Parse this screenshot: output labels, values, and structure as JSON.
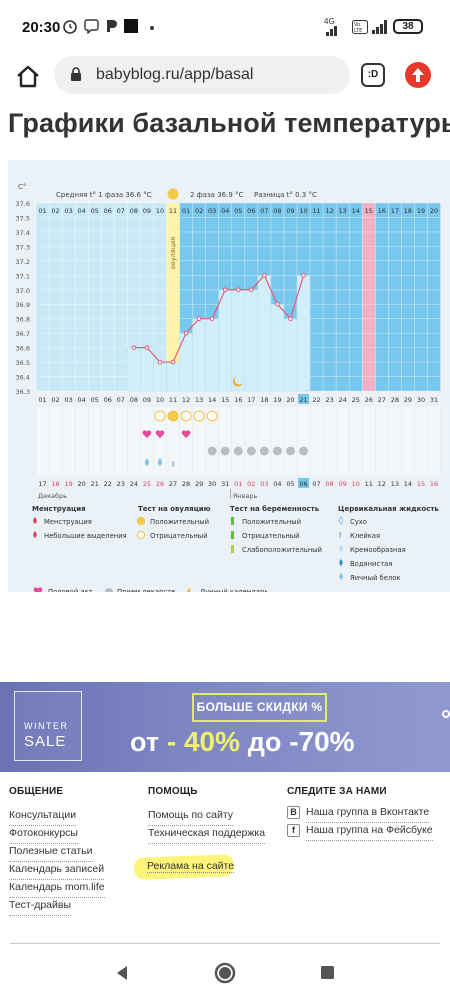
{
  "status": {
    "time": "20:30",
    "battery": "38",
    "network_4g": "4G",
    "volte": "Vo LTE"
  },
  "browser": {
    "url": "babyblog.ru/app/basal",
    "tabs_label": ":D"
  },
  "page": {
    "title": "Графики базальной температуры"
  },
  "chart_data": {
    "type": "line",
    "ylabel": "C°",
    "yticks": [
      "37.6",
      "37.5",
      "37.4",
      "37.3",
      "37.2",
      "37.1",
      "37.0",
      "36.9",
      "36.8",
      "36.7",
      "36.6",
      "36.5",
      "36.4",
      "36.3"
    ],
    "ylim": [
      36.3,
      37.6
    ],
    "phase1_label": "Средняя t° 1 фаза 36.6 °C",
    "phase2_label": "2 фаза 36.9 °C",
    "diff_label": "Разница t° 0.3 °C",
    "ovulation_label": "овуляция",
    "cycle_days": [
      "01",
      "02",
      "03",
      "04",
      "05",
      "06",
      "07",
      "08",
      "09",
      "10",
      "11",
      "01",
      "02",
      "03",
      "04",
      "05",
      "06",
      "07",
      "08",
      "09",
      "10",
      "11",
      "12",
      "13",
      "14",
      "15",
      "16",
      "17",
      "18",
      "19",
      "20"
    ],
    "cycle_day_strip": [
      "01",
      "02",
      "03",
      "04",
      "05",
      "06",
      "07",
      "08",
      "09",
      "10",
      "11",
      "12",
      "13",
      "14",
      "15",
      "16",
      "17",
      "18",
      "19",
      "20",
      "21",
      "22",
      "23",
      "24",
      "25",
      "26",
      "27",
      "28",
      "29",
      "30",
      "31"
    ],
    "date_days": [
      "17",
      "18",
      "19",
      "20",
      "21",
      "22",
      "23",
      "24",
      "25",
      "26",
      "27",
      "28",
      "29",
      "30",
      "31",
      "01",
      "02",
      "03",
      "04",
      "05",
      "06",
      "07",
      "08",
      "09",
      "10",
      "11",
      "12",
      "13",
      "14",
      "15",
      "16"
    ],
    "date_days_red": [
      1,
      2,
      8,
      9,
      15,
      16,
      17,
      22,
      23,
      24,
      29,
      30
    ],
    "month_labels": [
      "Декабрь",
      "Январь"
    ],
    "highlight_day_index": 20,
    "ovulation_day_index": 10,
    "pink_day_index": 25,
    "series": [
      {
        "values": [
          null,
          null,
          null,
          null,
          null,
          null,
          null,
          36.6,
          36.6,
          36.5,
          36.5,
          36.7,
          36.8,
          36.8,
          37.0,
          37.0,
          37.0,
          37.1,
          36.9,
          36.8,
          37.1,
          null,
          null,
          null,
          null,
          null,
          null,
          null,
          null,
          null,
          null
        ]
      }
    ],
    "legend": {
      "menstruation": {
        "title": "Менструация",
        "items": [
          "Менструация",
          "Небольшие выделения"
        ]
      },
      "ovulation_test": {
        "title": "Тест на овуляцию",
        "items": [
          "Положительный",
          "Отрицательный"
        ]
      },
      "pregnancy_test": {
        "title": "Тест на беременность",
        "items": [
          "Положительный",
          "Отрицательный",
          "Слабоположительный"
        ]
      },
      "cervical": {
        "title": "Цервикальная жидкость",
        "items": [
          "Сухо",
          "Клейкая",
          "Кремообразная",
          "Водянистая",
          "Яичный белок"
        ]
      },
      "bottom": [
        "Половой акт",
        "Прием лекарств",
        "Лунный календарь"
      ]
    },
    "colors": {
      "phase1": "#c9e9f7",
      "phase2": "#78c7ec",
      "ovulation": "#fef3a8",
      "pink": "#f3b0c4",
      "line": "#e05a7c",
      "bars": "#d2eef9"
    }
  },
  "banner": {
    "winter": "WINTER",
    "sale": "SALE",
    "more": "БОЛЬШЕ СКИДКИ %",
    "from": "от",
    "dash1": "-",
    "p1": "40%",
    "to": "до",
    "p2": "-70%"
  },
  "footer": {
    "col1": {
      "title": "ОБЩЕНИЕ",
      "links": [
        "Консультации",
        "Фотоконкурсы",
        "Полезные статьи",
        "Календарь записей",
        "Календарь mom.life",
        "Тест-драйвы"
      ]
    },
    "col2": {
      "title": "ПОМОЩЬ",
      "links": [
        "Помощь по сайту",
        "Техническая поддержка"
      ],
      "ad": "Реклама на сайте"
    },
    "col3": {
      "title": "СЛЕДИТЕ ЗА НАМИ",
      "links": [
        "Наша группа в Вконтакте",
        "Наша группа на Фейсбуке"
      ],
      "icons": [
        "В",
        "f"
      ]
    }
  }
}
